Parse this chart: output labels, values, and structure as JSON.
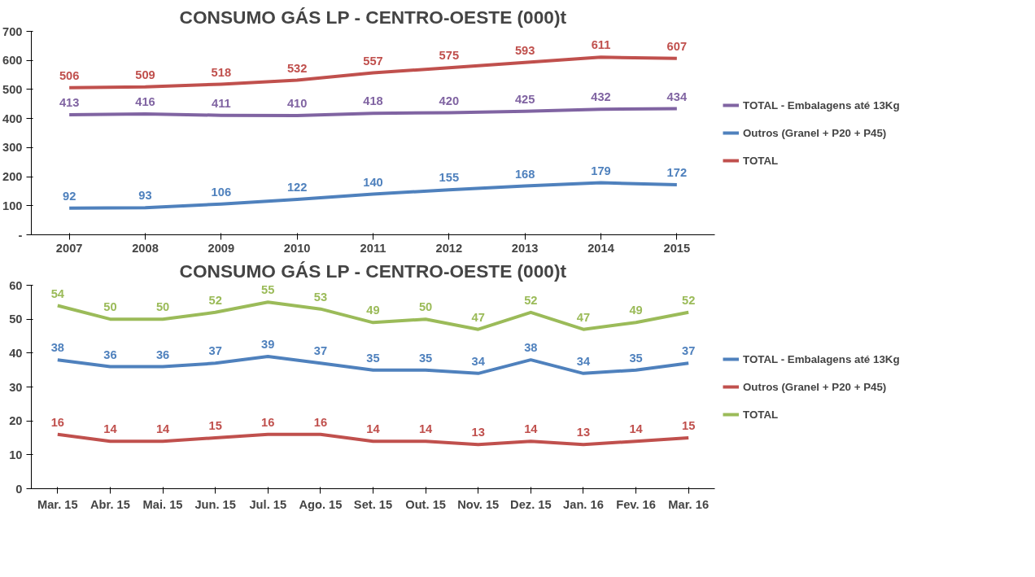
{
  "chart_data": [
    {
      "type": "line",
      "title": "CONSUMO GÁS LP - CENTRO-OESTE (000)t",
      "categories": [
        "2007",
        "2008",
        "2009",
        "2010",
        "2011",
        "2012",
        "2013",
        "2014",
        "2015"
      ],
      "series": [
        {
          "name": "TOTAL - Embalagens até 13Kg",
          "color": "#8064a2",
          "values": [
            413,
            416,
            411,
            410,
            418,
            420,
            425,
            432,
            434
          ]
        },
        {
          "name": "Outros (Granel + P20 + P45)",
          "color": "#4f81bd",
          "values": [
            92,
            93,
            106,
            122,
            140,
            155,
            168,
            179,
            172
          ]
        },
        {
          "name": "TOTAL",
          "color": "#c0504d",
          "values": [
            506,
            509,
            518,
            532,
            557,
            575,
            593,
            611,
            607
          ]
        }
      ],
      "ylim": [
        0,
        700
      ],
      "yticks": [
        {
          "value": 0,
          "label": "-"
        },
        100,
        200,
        300,
        400,
        500,
        600,
        700
      ],
      "data_labels": true,
      "grid": false,
      "legend": "right",
      "marker": "none",
      "line_style": "solid"
    },
    {
      "type": "line",
      "title": "CONSUMO GÁS LP - CENTRO-OESTE (000)t",
      "categories": [
        "Mar. 15",
        "Abr. 15",
        "Mai. 15",
        "Jun. 15",
        "Jul. 15",
        "Ago. 15",
        "Set. 15",
        "Out. 15",
        "Nov. 15",
        "Dez. 15",
        "Jan. 16",
        "Fev. 16",
        "Mar. 16"
      ],
      "series": [
        {
          "name": "TOTAL - Embalagens até 13Kg",
          "color": "#4f81bd",
          "values": [
            38,
            36,
            36,
            37,
            39,
            37,
            35,
            35,
            34,
            38,
            34,
            35,
            37
          ]
        },
        {
          "name": "Outros (Granel + P20 + P45)",
          "color": "#c0504d",
          "values": [
            16,
            14,
            14,
            15,
            16,
            16,
            14,
            14,
            13,
            14,
            13,
            14,
            15
          ]
        },
        {
          "name": "TOTAL",
          "color": "#9bbb59",
          "values": [
            54,
            50,
            50,
            52,
            55,
            53,
            49,
            50,
            47,
            52,
            47,
            49,
            52
          ]
        }
      ],
      "ylim": [
        0,
        60
      ],
      "yticks": [
        0,
        10,
        20,
        30,
        40,
        50,
        60
      ],
      "data_labels": true,
      "grid": false,
      "legend": "right",
      "marker": "none",
      "line_style": "solid"
    }
  ]
}
